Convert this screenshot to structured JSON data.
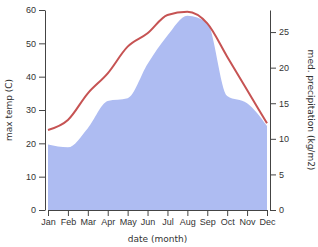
{
  "chart_data": {
    "type": "line",
    "x_label": "date (month)",
    "y_label": "max temp (C)",
    "y2_label": "med. precipitation (kg/m2)",
    "categories": [
      "Jan",
      "Feb",
      "Mar",
      "Apr",
      "May",
      "Jun",
      "Jul",
      "Aug",
      "Sep",
      "Oct",
      "Nov",
      "Dec"
    ],
    "series": [
      {
        "type": "area",
        "axis": "y2",
        "color": "#aebcf2",
        "values": [
          9.2,
          8.8,
          11.5,
          15.3,
          15.7,
          20.5,
          24.5,
          27.3,
          26.3,
          16.0,
          15.0,
          11.8
        ]
      },
      {
        "type": "line",
        "color": "#c65353",
        "values": [
          24,
          27,
          35,
          41,
          49,
          53,
          58.5,
          59.5,
          56,
          46,
          36,
          26
        ]
      }
    ],
    "ylim": [
      0,
      60
    ],
    "yticks": [
      0,
      10,
      20,
      30,
      40,
      50,
      60
    ],
    "y2lim": [
      0,
      28.1
    ],
    "y2ticks": [
      0,
      5,
      10,
      15,
      20,
      25
    ],
    "grid": false
  }
}
